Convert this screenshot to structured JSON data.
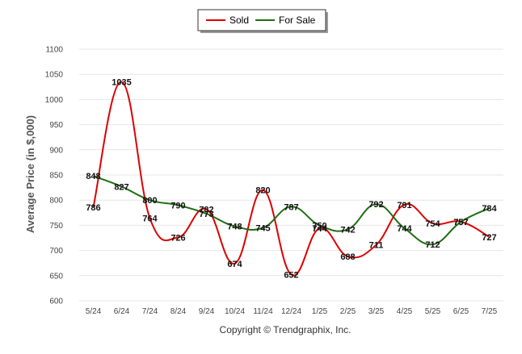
{
  "chart_data": {
    "type": "line",
    "ylabel": "Average Price (in $,000)",
    "footer": "Copyright © Trendgraphix, Inc.",
    "categories": [
      "5/24",
      "6/24",
      "7/24",
      "8/24",
      "9/24",
      "10/24",
      "11/24",
      "12/24",
      "1/25",
      "2/25",
      "3/25",
      "4/25",
      "5/25",
      "6/25",
      "7/25"
    ],
    "y_ticks": [
      "600",
      "650",
      "700",
      "750",
      "800",
      "850",
      "900",
      "950",
      "1000",
      "1050",
      "1100"
    ],
    "ylim": [
      600,
      1100
    ],
    "legend_position": "top-center",
    "grid": true,
    "series": [
      {
        "name": "Sold",
        "color": "#dd0000",
        "values": [
          786,
          1035,
          764,
          726,
          782,
          674,
          820,
          652,
          744,
          688,
          711,
          791,
          754,
          757,
          727
        ],
        "labels": [
          "786",
          "1035",
          "764",
          "726",
          "782",
          "674",
          "820",
          "652",
          "744",
          "688",
          "711",
          "791",
          "754",
          "757",
          "727"
        ]
      },
      {
        "name": "For Sale",
        "color": "#1e6e12",
        "values": [
          848,
          827,
          800,
          790,
          773,
          748,
          745,
          787,
          750,
          742,
          792,
          744,
          712,
          757,
          784
        ],
        "labels": [
          "848",
          "827",
          "800",
          "790",
          "773",
          "748",
          "745",
          "787",
          "750",
          "742",
          "792",
          "744",
          "712",
          "757",
          "784"
        ]
      }
    ]
  }
}
